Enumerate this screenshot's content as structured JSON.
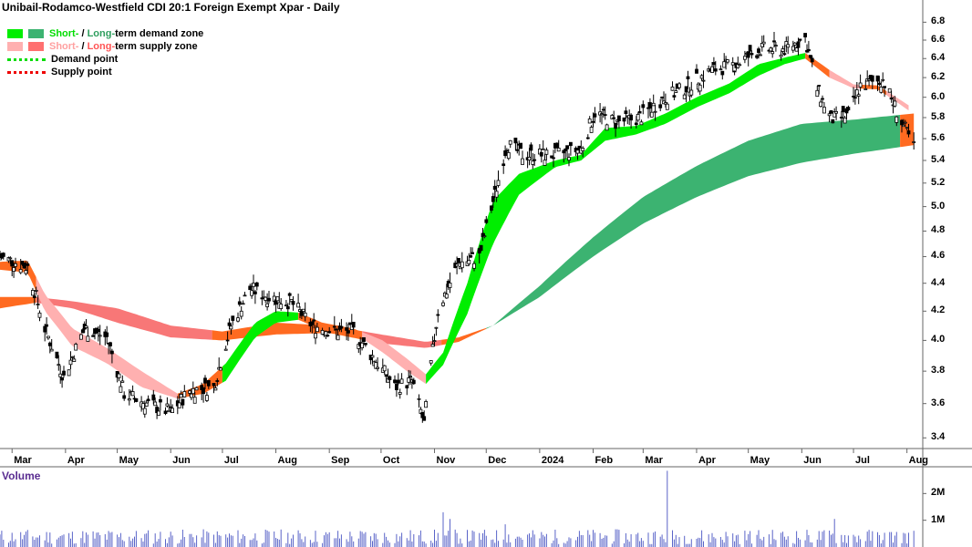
{
  "title": "Unibail-Rodamco-Westfield CDI 20:1 Foreign Exempt Xpar - Daily",
  "legend": [
    {
      "label_a": "Short-",
      "sep": " / ",
      "label_b": "Long-",
      "tail": "term demand zone",
      "color_a": "#00ee00",
      "color_b": "#3cb371"
    },
    {
      "label_a": "Short-",
      "sep": " / ",
      "label_b": "Long-",
      "tail": "term supply zone",
      "color_a": "#ffb0b0",
      "color_b": "#ff7070"
    },
    {
      "label": "Demand point",
      "color": "#00dd00"
    },
    {
      "label": "Supply point",
      "color": "#ee0000"
    }
  ],
  "volume_title": "Volume",
  "colors": {
    "demand_short": "#00ee00",
    "demand_long": "#3cb371",
    "supply_short": "#ffb0b0",
    "supply_long": "#f87777",
    "transition": "#ff6a20",
    "volume": "#5a64c8",
    "axis": "#666666"
  },
  "chart_data": {
    "type": "line",
    "price_axis": {
      "ticks": [
        "6.8",
        "6.6",
        "6.4",
        "6.2",
        "6.0",
        "5.8",
        "5.6",
        "5.4",
        "5.2",
        "5.0",
        "4.8",
        "4.6",
        "4.4",
        "4.2",
        "4.0",
        "3.8",
        "3.6",
        "3.4"
      ],
      "scale": "log",
      "ylim": [
        3.34,
        6.95
      ]
    },
    "volume_axis": {
      "ticks": [
        "2M",
        "1M"
      ]
    },
    "x_ticks": [
      "Mar",
      "Apr",
      "May",
      "Jun",
      "Jul",
      "Aug",
      "Sep",
      "Oct",
      "Nov",
      "Dec",
      "2024",
      "Feb",
      "Mar",
      "Apr",
      "May",
      "Jun",
      "Jul",
      "Aug"
    ],
    "x_tick_dates": [
      "2023-03-01",
      "2023-04-01",
      "2023-05-01",
      "2023-06-01",
      "2023-07-01",
      "2023-08-01",
      "2023-09-01",
      "2023-10-01",
      "2023-11-01",
      "2023-12-01",
      "2024-01-01",
      "2024-02-01",
      "2024-03-01",
      "2024-04-01",
      "2024-05-01",
      "2024-06-01",
      "2024-07-01",
      "2024-08-01"
    ],
    "x_range": [
      "2023-02-22",
      "2024-08-07"
    ],
    "price_close": [
      [
        "2023-02-22",
        4.6
      ],
      [
        "2023-03-10",
        4.52
      ],
      [
        "2023-03-20",
        4.08
      ],
      [
        "2023-03-31",
        3.76
      ],
      [
        "2023-04-12",
        4.08
      ],
      [
        "2023-04-25",
        4.02
      ],
      [
        "2023-05-05",
        3.66
      ],
      [
        "2023-05-18",
        3.6
      ],
      [
        "2023-06-01",
        3.55
      ],
      [
        "2023-06-12",
        3.68
      ],
      [
        "2023-06-26",
        3.7
      ],
      [
        "2023-07-06",
        4.1
      ],
      [
        "2023-07-17",
        4.36
      ],
      [
        "2023-07-28",
        4.3
      ],
      [
        "2023-08-10",
        4.26
      ],
      [
        "2023-08-22",
        4.1
      ],
      [
        "2023-09-04",
        4.06
      ],
      [
        "2023-09-15",
        4.06
      ],
      [
        "2023-09-27",
        3.88
      ],
      [
        "2023-10-09",
        3.7
      ],
      [
        "2023-10-19",
        3.74
      ],
      [
        "2023-10-26",
        3.48
      ],
      [
        "2023-11-03",
        4.2
      ],
      [
        "2023-11-15",
        4.55
      ],
      [
        "2023-11-27",
        4.6
      ],
      [
        "2023-12-06",
        5.1
      ],
      [
        "2023-12-13",
        5.55
      ],
      [
        "2023-12-22",
        5.45
      ],
      [
        "2024-01-10",
        5.45
      ],
      [
        "2024-01-25",
        5.5
      ],
      [
        "2024-02-02",
        5.85
      ],
      [
        "2024-02-14",
        5.75
      ],
      [
        "2024-02-28",
        5.8
      ],
      [
        "2024-03-12",
        5.98
      ],
      [
        "2024-03-26",
        6.1
      ],
      [
        "2024-04-10",
        6.28
      ],
      [
        "2024-04-24",
        6.34
      ],
      [
        "2024-05-08",
        6.5
      ],
      [
        "2024-05-22",
        6.5
      ],
      [
        "2024-06-03",
        6.62
      ],
      [
        "2024-06-10",
        6.08
      ],
      [
        "2024-06-18",
        5.78
      ],
      [
        "2024-06-28",
        5.82
      ],
      [
        "2024-07-05",
        6.12
      ],
      [
        "2024-07-18",
        6.18
      ],
      [
        "2024-07-29",
        5.75
      ],
      [
        "2024-08-05",
        5.52
      ]
    ],
    "short_term_upper": [
      [
        "2023-02-22",
        4.56
      ],
      [
        "2023-03-10",
        4.57
      ],
      [
        "2023-03-20",
        4.32
      ],
      [
        "2023-04-05",
        4.08
      ],
      [
        "2023-04-25",
        3.95
      ],
      [
        "2023-05-15",
        3.8
      ],
      [
        "2023-06-05",
        3.66
      ],
      [
        "2023-06-20",
        3.72
      ],
      [
        "2023-07-03",
        3.85
      ],
      [
        "2023-07-20",
        4.12
      ],
      [
        "2023-08-01",
        4.2
      ],
      [
        "2023-08-14",
        4.19
      ],
      [
        "2023-08-28",
        4.12
      ],
      [
        "2023-09-15",
        4.08
      ],
      [
        "2023-10-02",
        4.0
      ],
      [
        "2023-10-16",
        3.88
      ],
      [
        "2023-10-27",
        3.78
      ],
      [
        "2023-11-06",
        3.92
      ],
      [
        "2023-11-20",
        4.4
      ],
      [
        "2023-12-05",
        5.05
      ],
      [
        "2023-12-20",
        5.28
      ],
      [
        "2024-01-10",
        5.4
      ],
      [
        "2024-01-25",
        5.45
      ],
      [
        "2024-02-08",
        5.7
      ],
      [
        "2024-02-26",
        5.72
      ],
      [
        "2024-03-14",
        5.84
      ],
      [
        "2024-04-01",
        6.0
      ],
      [
        "2024-04-20",
        6.14
      ],
      [
        "2024-05-07",
        6.34
      ],
      [
        "2024-05-22",
        6.41
      ],
      [
        "2024-06-03",
        6.46
      ],
      [
        "2024-06-17",
        6.28
      ],
      [
        "2024-07-01",
        6.13
      ],
      [
        "2024-07-15",
        6.12
      ],
      [
        "2024-08-02",
        5.92
      ]
    ],
    "short_term_lower": [
      [
        "2023-02-22",
        4.5
      ],
      [
        "2023-03-10",
        4.48
      ],
      [
        "2023-03-20",
        4.2
      ],
      [
        "2023-04-05",
        3.96
      ],
      [
        "2023-04-25",
        3.85
      ],
      [
        "2023-05-15",
        3.7
      ],
      [
        "2023-06-05",
        3.63
      ],
      [
        "2023-06-20",
        3.66
      ],
      [
        "2023-07-03",
        3.74
      ],
      [
        "2023-07-20",
        4.02
      ],
      [
        "2023-08-01",
        4.12
      ],
      [
        "2023-08-14",
        4.14
      ],
      [
        "2023-08-28",
        4.07
      ],
      [
        "2023-09-15",
        4.05
      ],
      [
        "2023-10-02",
        3.92
      ],
      [
        "2023-10-16",
        3.8
      ],
      [
        "2023-10-27",
        3.72
      ],
      [
        "2023-11-06",
        3.84
      ],
      [
        "2023-11-20",
        4.18
      ],
      [
        "2023-12-05",
        4.7
      ],
      [
        "2023-12-20",
        5.1
      ],
      [
        "2024-01-10",
        5.34
      ],
      [
        "2024-01-25",
        5.4
      ],
      [
        "2024-02-08",
        5.58
      ],
      [
        "2024-02-26",
        5.64
      ],
      [
        "2024-03-14",
        5.74
      ],
      [
        "2024-04-01",
        5.9
      ],
      [
        "2024-04-20",
        6.04
      ],
      [
        "2024-05-07",
        6.22
      ],
      [
        "2024-05-22",
        6.34
      ],
      [
        "2024-06-03",
        6.4
      ],
      [
        "2024-06-17",
        6.2
      ],
      [
        "2024-07-01",
        6.09
      ],
      [
        "2024-07-15",
        6.08
      ],
      [
        "2024-08-02",
        5.87
      ]
    ],
    "long_term_upper": [
      [
        "2023-02-22",
        4.3
      ],
      [
        "2023-03-15",
        4.3
      ],
      [
        "2023-04-05",
        4.27
      ],
      [
        "2023-05-01",
        4.22
      ],
      [
        "2023-06-01",
        4.1
      ],
      [
        "2023-07-01",
        4.06
      ],
      [
        "2023-08-01",
        4.12
      ],
      [
        "2023-09-01",
        4.1
      ],
      [
        "2023-10-01",
        4.04
      ],
      [
        "2023-10-27",
        3.99
      ],
      [
        "2023-11-15",
        4.02
      ],
      [
        "2023-12-05",
        4.1
      ],
      [
        "2024-01-01",
        4.38
      ],
      [
        "2024-02-01",
        4.75
      ],
      [
        "2024-03-01",
        5.08
      ],
      [
        "2024-04-01",
        5.35
      ],
      [
        "2024-05-01",
        5.58
      ],
      [
        "2024-06-01",
        5.74
      ],
      [
        "2024-07-01",
        5.78
      ],
      [
        "2024-08-05",
        5.84
      ]
    ],
    "long_term_lower": [
      [
        "2023-02-22",
        4.22
      ],
      [
        "2023-03-15",
        4.26
      ],
      [
        "2023-04-05",
        4.22
      ],
      [
        "2023-05-01",
        4.12
      ],
      [
        "2023-06-01",
        4.02
      ],
      [
        "2023-07-01",
        4.0
      ],
      [
        "2023-08-01",
        4.04
      ],
      [
        "2023-09-01",
        4.05
      ],
      [
        "2023-10-01",
        3.98
      ],
      [
        "2023-10-27",
        3.95
      ],
      [
        "2023-11-15",
        3.99
      ],
      [
        "2023-12-05",
        4.1
      ],
      [
        "2024-01-01",
        4.3
      ],
      [
        "2024-02-01",
        4.6
      ],
      [
        "2024-03-01",
        4.86
      ],
      [
        "2024-04-01",
        5.08
      ],
      [
        "2024-05-01",
        5.26
      ],
      [
        "2024-06-01",
        5.38
      ],
      [
        "2024-07-01",
        5.46
      ],
      [
        "2024-08-05",
        5.54
      ]
    ],
    "zones": [
      {
        "band": "short",
        "start": "2023-02-22",
        "end": "2023-03-15",
        "kind": "transition"
      },
      {
        "band": "short",
        "start": "2023-03-15",
        "end": "2023-06-05",
        "kind": "supply"
      },
      {
        "band": "short",
        "start": "2023-06-05",
        "end": "2023-07-01",
        "kind": "transition"
      },
      {
        "band": "short",
        "start": "2023-07-01",
        "end": "2023-08-14",
        "kind": "demand"
      },
      {
        "band": "short",
        "start": "2023-08-14",
        "end": "2023-09-20",
        "kind": "transition"
      },
      {
        "band": "short",
        "start": "2023-09-20",
        "end": "2023-10-27",
        "kind": "supply"
      },
      {
        "band": "short",
        "start": "2023-10-27",
        "end": "2024-06-03",
        "kind": "demand"
      },
      {
        "band": "short",
        "start": "2024-06-03",
        "end": "2024-06-17",
        "kind": "transition"
      },
      {
        "band": "short",
        "start": "2024-06-17",
        "end": "2024-07-05",
        "kind": "supply"
      },
      {
        "band": "short",
        "start": "2024-07-05",
        "end": "2024-07-20",
        "kind": "transition"
      },
      {
        "band": "short",
        "start": "2024-07-20",
        "end": "2024-08-02",
        "kind": "supply"
      },
      {
        "band": "long",
        "start": "2023-02-22",
        "end": "2023-03-15",
        "kind": "transition"
      },
      {
        "band": "long",
        "start": "2023-03-15",
        "end": "2023-06-25",
        "kind": "supply"
      },
      {
        "band": "long",
        "start": "2023-06-25",
        "end": "2023-09-20",
        "kind": "transition"
      },
      {
        "band": "long",
        "start": "2023-09-20",
        "end": "2023-11-05",
        "kind": "supply"
      },
      {
        "band": "long",
        "start": "2023-11-05",
        "end": "2023-12-01",
        "kind": "transition"
      },
      {
        "band": "long",
        "start": "2023-12-01",
        "end": "2024-07-28",
        "kind": "demand"
      },
      {
        "band": "long",
        "start": "2024-07-28",
        "end": "2024-08-05",
        "kind": "transition"
      }
    ],
    "volume_spikes": [
      [
        "2023-11-06",
        1.3
      ],
      [
        "2023-11-10",
        1.05
      ],
      [
        "2023-12-12",
        0.85
      ],
      [
        "2024-03-15",
        2.85
      ],
      [
        "2024-06-20",
        1.05
      ]
    ],
    "volume_baseline": 0.35
  }
}
